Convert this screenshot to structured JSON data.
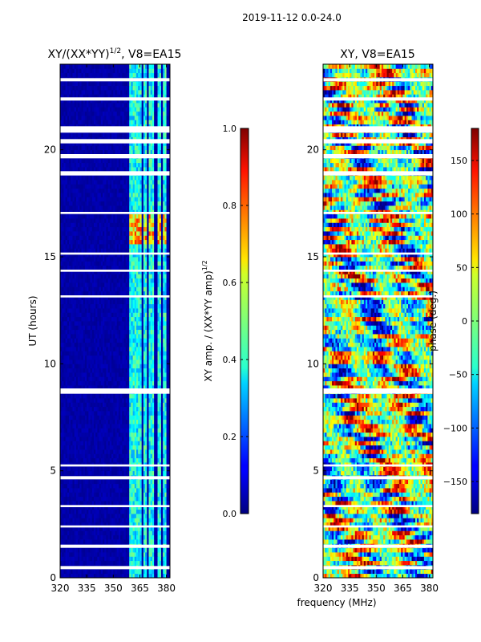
{
  "figure_title": "2019-11-12 0.0-24.0",
  "xlabel_shared": "frequency (MHz)",
  "chart_data": [
    {
      "type": "heatmap",
      "title": "XY/(XX*YY)",
      "title_exponent": "1/2",
      "title_suffix": ", V8=EA15",
      "ylabel": "UT (hours)",
      "xlim": [
        320,
        382
      ],
      "ylim": [
        0,
        24
      ],
      "xticks": [
        320,
        335,
        350,
        365,
        380
      ],
      "yticks": [
        0,
        5,
        10,
        15,
        20
      ],
      "colorbar": {
        "label": "XY amp. / (XX*YY amp)",
        "label_exponent": "1/2",
        "range": [
          0.0,
          1.0
        ],
        "ticks": [
          0.0,
          0.2,
          0.4,
          0.6,
          0.8,
          1.0
        ],
        "tick_labels": [
          "0.0",
          "0.2",
          "0.4",
          "0.6",
          "0.8",
          "1.0"
        ]
      },
      "colormap": "jet",
      "bright_bands_mhz": [
        [
          359,
          363
        ],
        [
          363,
          366
        ],
        [
          367,
          369
        ],
        [
          370,
          373
        ],
        [
          375,
          377
        ],
        [
          378,
          380
        ]
      ],
      "gaps_hours": [
        [
          0.4,
          0.55
        ],
        [
          1.4,
          1.55
        ],
        [
          2.35,
          2.45
        ],
        [
          3.3,
          3.4
        ],
        [
          4.6,
          4.75
        ],
        [
          5.2,
          5.3
        ],
        [
          8.6,
          8.85
        ],
        [
          13.1,
          13.2
        ],
        [
          14.3,
          14.4
        ],
        [
          15.1,
          15.2
        ],
        [
          17.0,
          17.1
        ],
        [
          18.8,
          19.0
        ],
        [
          19.6,
          19.8
        ],
        [
          20.3,
          20.5
        ],
        [
          20.8,
          21.1
        ],
        [
          22.3,
          22.45
        ],
        [
          23.2,
          23.35
        ]
      ]
    },
    {
      "type": "heatmap",
      "title": "XY, V8=EA15",
      "xlim": [
        320,
        382
      ],
      "ylim": [
        0,
        24
      ],
      "xticks": [
        320,
        335,
        350,
        365,
        380
      ],
      "yticks": [
        0,
        5,
        10,
        15,
        20
      ],
      "colorbar": {
        "label": "phase (deg.)",
        "range": [
          -180,
          180
        ],
        "ticks": [
          -150,
          -100,
          -50,
          0,
          50,
          100,
          150
        ],
        "tick_labels": [
          "−150",
          "−100",
          "−50",
          "0",
          "50",
          "100",
          "150"
        ]
      },
      "colormap": "jet",
      "gaps_hours": [
        [
          0.4,
          0.55
        ],
        [
          1.4,
          1.55
        ],
        [
          2.35,
          2.45
        ],
        [
          3.3,
          3.4
        ],
        [
          4.6,
          4.75
        ],
        [
          5.2,
          5.3
        ],
        [
          8.6,
          8.85
        ],
        [
          13.1,
          13.2
        ],
        [
          14.3,
          14.4
        ],
        [
          15.1,
          15.2
        ],
        [
          17.0,
          17.1
        ],
        [
          18.8,
          19.0
        ],
        [
          19.6,
          19.8
        ],
        [
          20.3,
          20.5
        ],
        [
          20.8,
          21.1
        ],
        [
          22.3,
          22.45
        ],
        [
          23.2,
          23.35
        ]
      ]
    }
  ]
}
